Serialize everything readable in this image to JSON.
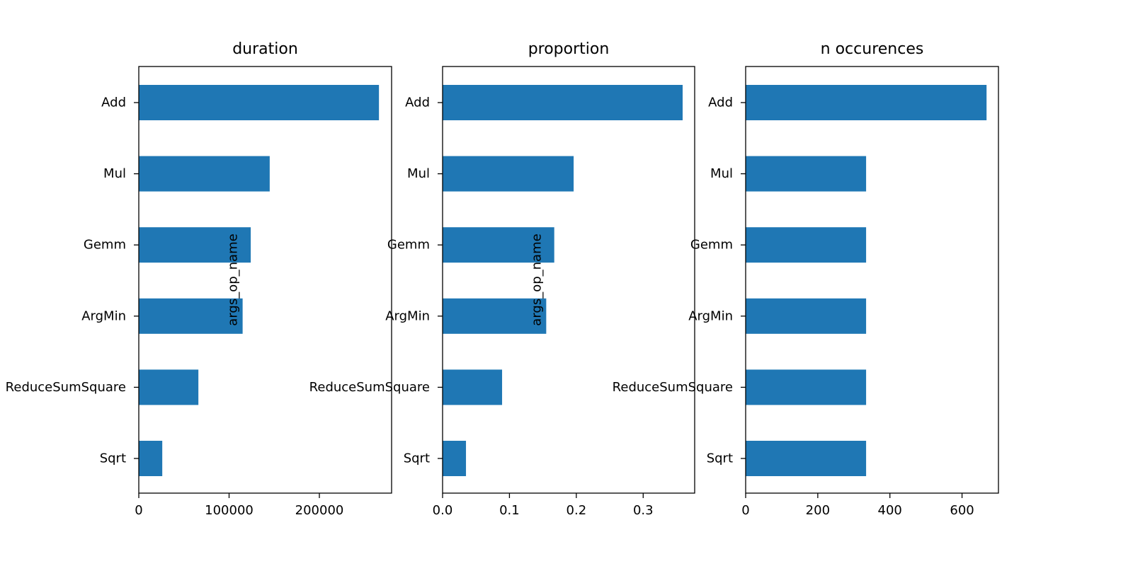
{
  "chart_data": [
    {
      "type": "bar",
      "orientation": "horizontal",
      "title": "duration",
      "ylabel": "args_op_name",
      "xlabel": "",
      "categories": [
        "Add",
        "Mul",
        "Gemm",
        "ArgMin",
        "ReduceSumSquare",
        "Sqrt"
      ],
      "values": [
        266000,
        145000,
        124000,
        115000,
        66000,
        26000
      ],
      "xlim": [
        0,
        280000
      ],
      "xticks": [
        0,
        100000,
        200000
      ],
      "xtick_labels": [
        "0",
        "100000",
        "200000"
      ],
      "color": "#1f77b4",
      "grid": false
    },
    {
      "type": "bar",
      "orientation": "horizontal",
      "title": "proportion",
      "ylabel": "args_op_name",
      "xlabel": "",
      "categories": [
        "Add",
        "Mul",
        "Gemm",
        "ArgMin",
        "ReduceSumSquare",
        "Sqrt"
      ],
      "values": [
        0.359,
        0.196,
        0.167,
        0.155,
        0.089,
        0.035
      ],
      "xlim": [
        0,
        0.377
      ],
      "xticks": [
        0.0,
        0.1,
        0.2,
        0.3
      ],
      "xtick_labels": [
        "0.0",
        "0.1",
        "0.2",
        "0.3"
      ],
      "color": "#1f77b4",
      "grid": false
    },
    {
      "type": "bar",
      "orientation": "horizontal",
      "title": "n occurences",
      "ylabel": "",
      "xlabel": "",
      "categories": [
        "Add",
        "Mul",
        "Gemm",
        "ArgMin",
        "ReduceSumSquare",
        "Sqrt"
      ],
      "values": [
        668,
        334,
        334,
        334,
        334,
        334
      ],
      "xlim": [
        0,
        701
      ],
      "xticks": [
        0,
        200,
        400,
        600
      ],
      "xtick_labels": [
        "0",
        "200",
        "400",
        "600"
      ],
      "color": "#1f77b4",
      "grid": false
    }
  ]
}
